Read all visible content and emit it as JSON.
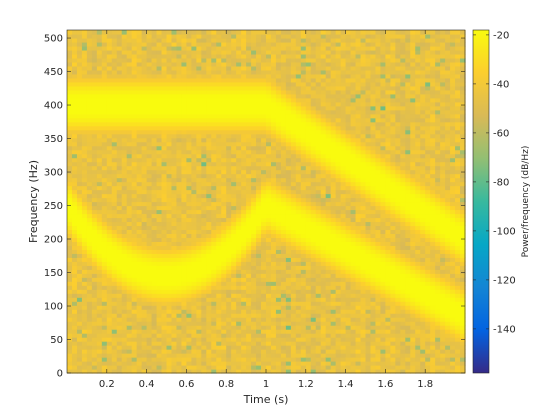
{
  "chart_data": {
    "type": "heatmap",
    "title": "",
    "xlabel": "Time (s)",
    "ylabel": "Frequency (Hz)",
    "xlim": [
      0.0,
      2.0
    ],
    "ylim": [
      0,
      512
    ],
    "xticks": [
      0.2,
      0.4,
      0.6,
      0.8,
      1,
      1.2,
      1.4,
      1.6,
      1.8
    ],
    "yticks": [
      0,
      50,
      100,
      150,
      200,
      250,
      300,
      350,
      400,
      450,
      500
    ],
    "colorbar": {
      "label": "Power/frequency (dB/Hz)",
      "range": [
        -158,
        -18
      ],
      "ticks": [
        -20,
        -40,
        -60,
        -80,
        -100,
        -120,
        -140
      ],
      "colormap": "parula"
    },
    "background_level_db": -45,
    "components": [
      {
        "name": "",
        "shape": "constant",
        "t_range": [
          0,
          1
        ],
        "f_start": 400,
        "f_end": 400,
        "peak_db": -18
      },
      {
        "name": "",
        "shape": "quadratic",
        "t_range": [
          0,
          1
        ],
        "f_start": 250,
        "f_vertex": 145,
        "t_vertex": 0.5,
        "f_end": 250,
        "peak_db": -18
      },
      {
        "name": "",
        "shape": "linear",
        "t_range": [
          1,
          2
        ],
        "f_start": 400,
        "f_end": 200,
        "peak_db": -18
      },
      {
        "name": "",
        "shape": "linear",
        "t_range": [
          1,
          2
        ],
        "f_start": 250,
        "f_end": 85,
        "peak_db": -18
      }
    ]
  }
}
